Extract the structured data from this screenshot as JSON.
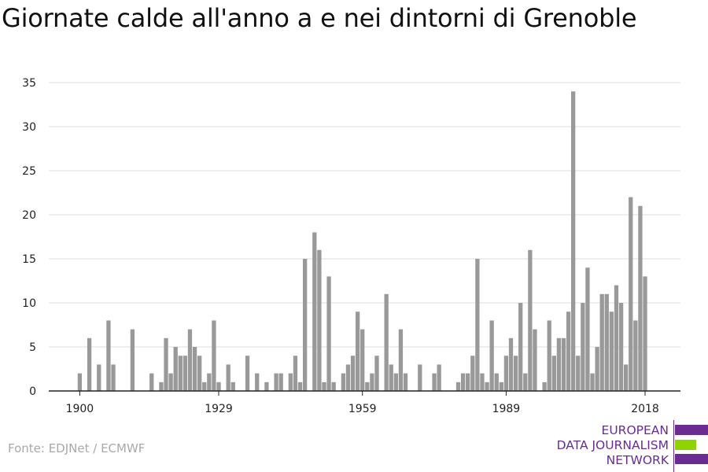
{
  "title": "Giornate calde all'anno a e nei dintorni di Grenoble",
  "source": "Fonte: EDJNet / ECMWF",
  "logo": {
    "lines": [
      "EUROPEAN",
      "DATA JOURNALISM",
      "NETWORK"
    ],
    "text_color": "#6a2c91",
    "bar_colors": [
      "#6a2c91",
      "#8fd400",
      "#6a2c91"
    ]
  },
  "colors": {
    "bar": "#999999",
    "grid": "#dedede",
    "axis": "#222222"
  },
  "chart_data": {
    "type": "bar",
    "title": "Giornate calde all'anno a e nei dintorni di Grenoble",
    "xlabel": "",
    "ylabel": "",
    "ylim": [
      0,
      35
    ],
    "yticks": [
      0,
      5,
      10,
      15,
      20,
      25,
      30,
      35
    ],
    "xticks": [
      1900,
      1929,
      1959,
      1989,
      2018
    ],
    "grid": true,
    "x": [
      1900,
      1901,
      1902,
      1903,
      1904,
      1905,
      1906,
      1907,
      1908,
      1909,
      1910,
      1911,
      1912,
      1913,
      1914,
      1915,
      1916,
      1917,
      1918,
      1919,
      1920,
      1921,
      1922,
      1923,
      1924,
      1925,
      1926,
      1927,
      1928,
      1929,
      1930,
      1931,
      1932,
      1933,
      1934,
      1935,
      1936,
      1937,
      1938,
      1939,
      1940,
      1941,
      1942,
      1943,
      1944,
      1945,
      1946,
      1947,
      1948,
      1949,
      1950,
      1951,
      1952,
      1953,
      1954,
      1955,
      1956,
      1957,
      1958,
      1959,
      1960,
      1961,
      1962,
      1963,
      1964,
      1965,
      1966,
      1967,
      1968,
      1969,
      1970,
      1971,
      1972,
      1973,
      1974,
      1975,
      1976,
      1977,
      1978,
      1979,
      1980,
      1981,
      1982,
      1983,
      1984,
      1985,
      1986,
      1987,
      1988,
      1989,
      1990,
      1991,
      1992,
      1993,
      1994,
      1995,
      1996,
      1997,
      1998,
      1999,
      2000,
      2001,
      2002,
      2003,
      2004,
      2005,
      2006,
      2007,
      2008,
      2009,
      2010,
      2011,
      2012,
      2013,
      2014,
      2015,
      2016,
      2017,
      2018
    ],
    "values": [
      2,
      0,
      6,
      0,
      3,
      0,
      8,
      3,
      0,
      0,
      0,
      7,
      0,
      0,
      0,
      2,
      0,
      1,
      6,
      2,
      5,
      4,
      4,
      7,
      5,
      4,
      1,
      2,
      8,
      1,
      0,
      3,
      1,
      0,
      0,
      4,
      0,
      2,
      0,
      1,
      0,
      2,
      2,
      0,
      2,
      4,
      1,
      15,
      0,
      18,
      16,
      1,
      13,
      1,
      0,
      2,
      3,
      4,
      9,
      7,
      1,
      2,
      4,
      0,
      11,
      3,
      2,
      7,
      2,
      0,
      0,
      3,
      0,
      0,
      2,
      3,
      0,
      0,
      0,
      1,
      2,
      2,
      4,
      15,
      2,
      1,
      8,
      2,
      1,
      4,
      6,
      4,
      10,
      2,
      16,
      7,
      0,
      1,
      8,
      4,
      6,
      6,
      9,
      34,
      4,
      10,
      14,
      2,
      5,
      11,
      11,
      9,
      12,
      10,
      3,
      22,
      8,
      21,
      13
    ]
  }
}
